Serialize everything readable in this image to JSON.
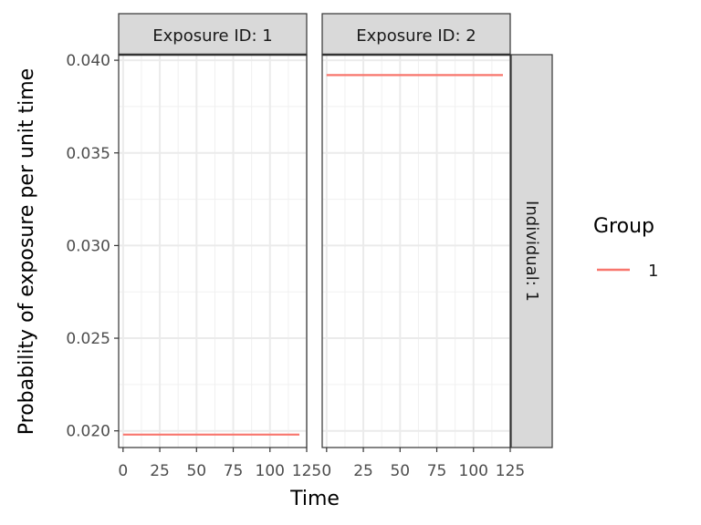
{
  "chart_data": {
    "type": "line",
    "xlabel": "Time",
    "ylabel": "Probability of exposure per unit time",
    "xlim": [
      -3,
      125
    ],
    "ylim": [
      0.0191,
      0.0403
    ],
    "x_ticks": [
      0,
      25,
      50,
      75,
      100,
      125
    ],
    "x_tick_labels": [
      "0",
      "25",
      "50",
      "75",
      "100",
      "125"
    ],
    "y_ticks": [
      0.02,
      0.025,
      0.03,
      0.035,
      0.04
    ],
    "y_tick_labels": [
      "0.020",
      "0.025",
      "0.030",
      "0.035",
      "0.040"
    ],
    "grid": true,
    "facets": {
      "columns": [
        {
          "label": "Exposure ID: 1"
        },
        {
          "label": "Exposure ID: 2"
        }
      ],
      "row_label": "Individual: 1"
    },
    "legend": {
      "title": "Group",
      "placement": "right",
      "entries": [
        {
          "label": "1",
          "color": "#F8766D"
        }
      ]
    },
    "series": [
      {
        "facet": 0,
        "group": "1",
        "color": "#F8766D",
        "x": [
          0,
          120
        ],
        "y": [
          0.0198,
          0.0198
        ]
      },
      {
        "facet": 1,
        "group": "1",
        "color": "#F8766D",
        "x": [
          0,
          120
        ],
        "y": [
          0.0392,
          0.0392
        ]
      }
    ]
  }
}
